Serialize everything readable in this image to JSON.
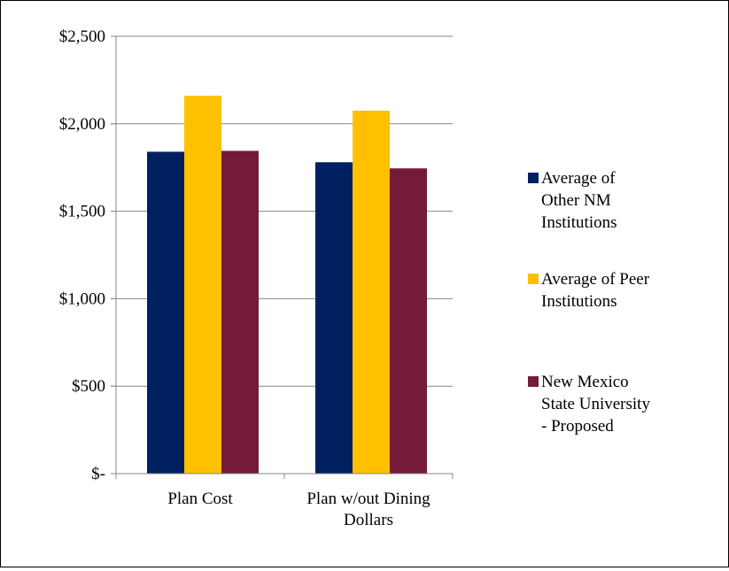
{
  "chart_data": {
    "type": "bar",
    "title": "",
    "xlabel": "",
    "ylabel": "",
    "categories": [
      "Plan Cost",
      "Plan w/out Dining Dollars"
    ],
    "category_lines": [
      [
        "Plan Cost"
      ],
      [
        "Plan w/out Dining",
        "Dollars"
      ]
    ],
    "series": [
      {
        "name": "Average of Other NM Institutions",
        "legend_lines": [
          "Average of",
          "Other NM",
          "Institutions"
        ],
        "color": "#002060",
        "values": [
          1840,
          1780
        ]
      },
      {
        "name": "Average of Peer Institutions",
        "legend_lines": [
          "Average of Peer",
          "Institutions"
        ],
        "color": "#ffc000",
        "values": [
          2160,
          2075
        ]
      },
      {
        "name": "New Mexico State University - Proposed",
        "legend_lines": [
          "New Mexico",
          "State University",
          "- Proposed"
        ],
        "color": "#741b3a",
        "values": [
          1845,
          1745
        ]
      }
    ],
    "ylim": [
      0,
      2500
    ],
    "yticks": [
      0,
      500,
      1000,
      1500,
      2000,
      2500
    ],
    "ytick_labels": [
      "$-",
      "$500",
      "$1,000",
      "$1,500",
      "$2,000",
      "$2,500"
    ],
    "grid": true,
    "legend_position": "right"
  }
}
